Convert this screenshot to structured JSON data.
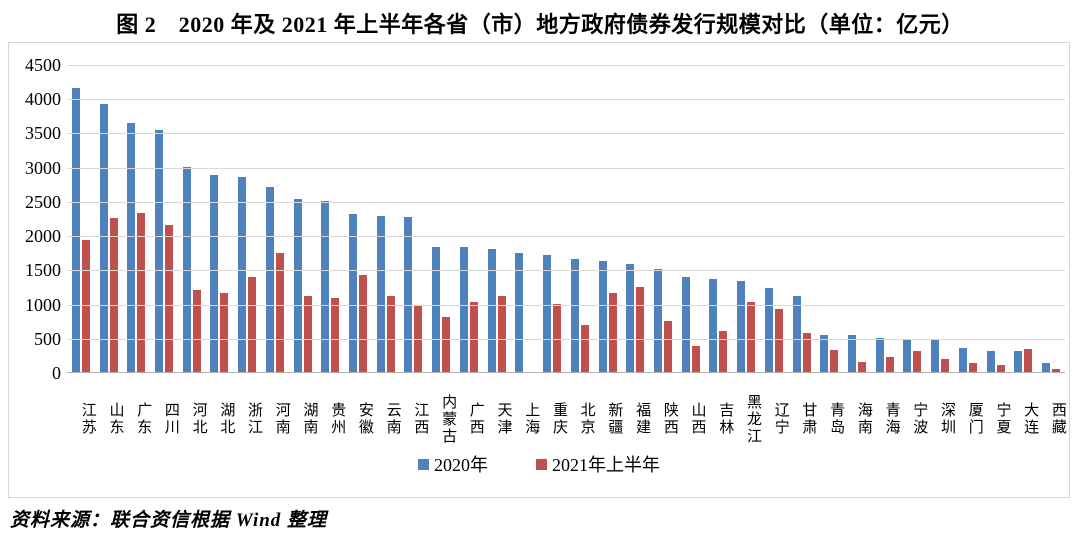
{
  "figure": {
    "title": "图 2　2020 年及 2021 年上半年各省（市）地方政府债券发行规模对比（单位：亿元）",
    "source": "资料来源：联合资信根据 Wind 整理"
  },
  "colors": {
    "series_2020": "#4F81BD",
    "series_2021h1": "#C0504D",
    "gridline": "#D9D9D9",
    "chart_border": "#D6D6D6"
  },
  "chart_data": {
    "type": "bar",
    "title": "2020 年及 2021 年上半年各省（市）地方政府债券发行规模对比",
    "unit": "亿元",
    "categories": [
      "江苏",
      "山东",
      "广东",
      "四川",
      "河北",
      "湖北",
      "浙江",
      "河南",
      "湖南",
      "贵州",
      "安徽",
      "云南",
      "江西",
      "内蒙古",
      "广西",
      "天津",
      "上海",
      "重庆",
      "北京",
      "新疆",
      "福建",
      "陕西",
      "山西",
      "吉林",
      "黑龙江",
      "辽宁",
      "甘肃",
      "青岛",
      "海南",
      "青海",
      "宁波",
      "深圳",
      "厦门",
      "宁夏",
      "大连",
      "西藏"
    ],
    "series": [
      {
        "name": "2020年",
        "color": "#4F81BD",
        "values": [
          4170,
          3930,
          3650,
          3550,
          3010,
          2900,
          2870,
          2725,
          2540,
          2520,
          2325,
          2295,
          2285,
          1840,
          1835,
          1805,
          1755,
          1720,
          1670,
          1640,
          1600,
          1525,
          1400,
          1380,
          1340,
          1235,
          1120,
          560,
          560,
          505,
          485,
          485,
          365,
          325,
          315,
          140
        ]
      },
      {
        "name": "2021年上半年",
        "color": "#C0504D",
        "values": [
          1940,
          2265,
          2340,
          2165,
          1215,
          1165,
          1400,
          1755,
          1120,
          1090,
          1425,
          1120,
          995,
          815,
          1035,
          1120,
          0,
          1015,
          700,
          1175,
          1255,
          765,
          400,
          610,
          1040,
          940,
          580,
          335,
          165,
          235,
          325,
          210,
          145,
          115,
          355,
          65
        ]
      }
    ],
    "ylabel": "",
    "xlabel": "",
    "ylim": [
      0,
      4500
    ],
    "ytick_interval": 500,
    "grid": true,
    "legend_position": "bottom"
  }
}
